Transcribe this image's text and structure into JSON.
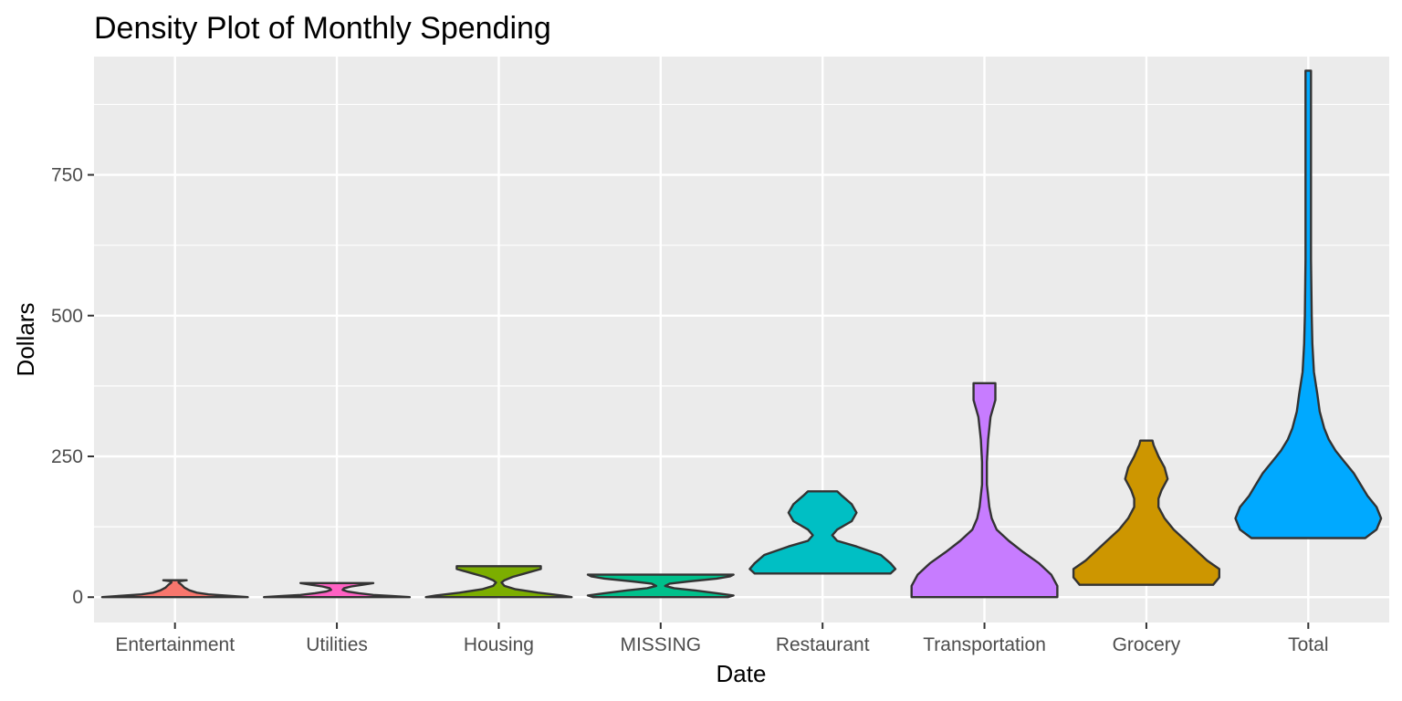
{
  "chart_data": {
    "type": "violin",
    "title": "Density Plot of Monthly Spending",
    "xlabel": "Date",
    "ylabel": "Dollars",
    "ylim": [
      -45,
      960
    ],
    "yticks": [
      0,
      250,
      500,
      750
    ],
    "grid": true,
    "legend": "none",
    "categories": [
      "Entertainment",
      "Utilities",
      "Housing",
      "MISSING",
      "Restaurant",
      "Transportation",
      "Grocery",
      "Total"
    ],
    "series": [
      {
        "category": "Entertainment",
        "color": "#F8766D",
        "min": 0,
        "max": 30,
        "density": [
          [
            0,
            1.0
          ],
          [
            2,
            0.78
          ],
          [
            5,
            0.46
          ],
          [
            8,
            0.3
          ],
          [
            12,
            0.2
          ],
          [
            17,
            0.13
          ],
          [
            22,
            0.09
          ],
          [
            26,
            0.05
          ],
          [
            28,
            0.05
          ],
          [
            30,
            0.16
          ]
        ]
      },
      {
        "category": "Utilities",
        "color": "#FF61C3",
        "min": 0,
        "max": 25,
        "density": [
          [
            0,
            1.0
          ],
          [
            2,
            0.75
          ],
          [
            4,
            0.5
          ],
          [
            7,
            0.3
          ],
          [
            10,
            0.15
          ],
          [
            13,
            0.08
          ],
          [
            16,
            0.1
          ],
          [
            19,
            0.2
          ],
          [
            22,
            0.35
          ],
          [
            25,
            0.5
          ]
        ]
      },
      {
        "category": "Housing",
        "color": "#7CAE00",
        "min": 0,
        "max": 55,
        "density": [
          [
            0,
            0.52
          ],
          [
            3,
            0.45
          ],
          [
            8,
            0.28
          ],
          [
            14,
            0.12
          ],
          [
            20,
            0.04
          ],
          [
            26,
            0.02
          ],
          [
            30,
            0.04
          ],
          [
            36,
            0.1
          ],
          [
            43,
            0.2
          ],
          [
            50,
            0.3
          ],
          [
            55,
            0.3
          ]
        ]
      },
      {
        "category": "MISSING",
        "color": "#00C08B",
        "min": 0,
        "max": 40,
        "density": [
          [
            0,
            0.6
          ],
          [
            3,
            0.65
          ],
          [
            7,
            0.5
          ],
          [
            12,
            0.3
          ],
          [
            16,
            0.12
          ],
          [
            20,
            0.04
          ],
          [
            24,
            0.08
          ],
          [
            28,
            0.25
          ],
          [
            33,
            0.5
          ],
          [
            37,
            0.62
          ],
          [
            40,
            0.65
          ]
        ]
      },
      {
        "category": "Restaurant",
        "color": "#00BFC4",
        "min": 42,
        "max": 188,
        "density": [
          [
            42,
            0.14
          ],
          [
            50,
            0.15
          ],
          [
            60,
            0.14
          ],
          [
            75,
            0.12
          ],
          [
            90,
            0.07
          ],
          [
            100,
            0.03
          ],
          [
            110,
            0.02
          ],
          [
            120,
            0.03
          ],
          [
            135,
            0.06
          ],
          [
            150,
            0.07
          ],
          [
            165,
            0.06
          ],
          [
            180,
            0.04
          ],
          [
            188,
            0.03
          ]
        ]
      },
      {
        "category": "Transportation",
        "color": "#C77CFF",
        "min": 0,
        "max": 380,
        "density": [
          [
            0,
            0.06
          ],
          [
            20,
            0.06
          ],
          [
            40,
            0.055
          ],
          [
            60,
            0.045
          ],
          [
            80,
            0.032
          ],
          [
            100,
            0.02
          ],
          [
            120,
            0.01
          ],
          [
            140,
            0.006
          ],
          [
            160,
            0.004
          ],
          [
            200,
            0.002
          ],
          [
            240,
            0.002
          ],
          [
            280,
            0.003
          ],
          [
            320,
            0.005
          ],
          [
            350,
            0.009
          ],
          [
            380,
            0.009
          ]
        ]
      },
      {
        "category": "Grocery",
        "color": "#CD9600",
        "min": 22,
        "max": 278,
        "density": [
          [
            22,
            0.11
          ],
          [
            35,
            0.12
          ],
          [
            50,
            0.12
          ],
          [
            65,
            0.1
          ],
          [
            80,
            0.085
          ],
          [
            100,
            0.065
          ],
          [
            120,
            0.045
          ],
          [
            140,
            0.03
          ],
          [
            160,
            0.02
          ],
          [
            175,
            0.02
          ],
          [
            190,
            0.025
          ],
          [
            210,
            0.035
          ],
          [
            230,
            0.03
          ],
          [
            250,
            0.02
          ],
          [
            270,
            0.012
          ],
          [
            278,
            0.01
          ]
        ]
      },
      {
        "category": "Total",
        "color": "#00A9FF",
        "min": 105,
        "max": 935,
        "density": [
          [
            105,
            0.025
          ],
          [
            120,
            0.03
          ],
          [
            140,
            0.032
          ],
          [
            160,
            0.03
          ],
          [
            180,
            0.026
          ],
          [
            200,
            0.023
          ],
          [
            220,
            0.02
          ],
          [
            240,
            0.016
          ],
          [
            260,
            0.012
          ],
          [
            280,
            0.009
          ],
          [
            300,
            0.007
          ],
          [
            330,
            0.005
          ],
          [
            360,
            0.004
          ],
          [
            400,
            0.0025
          ],
          [
            450,
            0.0018
          ],
          [
            500,
            0.0015
          ],
          [
            600,
            0.0012
          ],
          [
            700,
            0.0012
          ],
          [
            800,
            0.0012
          ],
          [
            900,
            0.0012
          ],
          [
            935,
            0.0012
          ]
        ]
      }
    ]
  }
}
